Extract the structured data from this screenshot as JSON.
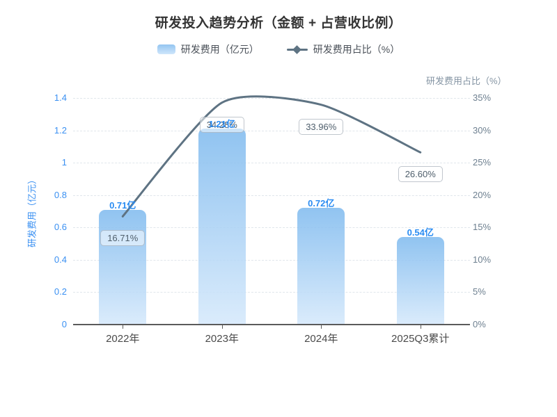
{
  "chart_data": {
    "type": "combo",
    "title": "研发投入趋势分析（金额 + 占营收比例）",
    "categories": [
      "2022年",
      "2023年",
      "2024年",
      "2025Q3累计"
    ],
    "series": [
      {
        "name": "研发费用（亿元）",
        "type": "bar",
        "axis": "left",
        "values": [
          0.71,
          1.21,
          0.72,
          0.54
        ],
        "labels": [
          "0.71亿",
          "1.21亿",
          "0.72亿",
          "0.54亿"
        ]
      },
      {
        "name": "研发费用占比（%）",
        "type": "line",
        "axis": "right",
        "values": [
          16.71,
          34.28,
          33.96,
          26.6
        ],
        "labels": [
          "16.71%",
          "34.28%",
          "33.96%",
          "26.60%"
        ]
      }
    ],
    "left_axis": {
      "title": "研发费用（亿元）",
      "min": 0,
      "max": 1.4,
      "ticks": [
        "0",
        "0.2",
        "0.4",
        "0.6",
        "0.8",
        "1",
        "1.2",
        "1.4"
      ]
    },
    "right_axis": {
      "title": "研发费用占比（%）",
      "min": 0,
      "max": 35,
      "ticks": [
        "0%",
        "5%",
        "10%",
        "15%",
        "20%",
        "25%",
        "30%",
        "35%"
      ]
    },
    "grid": true,
    "legend_position": "top",
    "colors": {
      "bar_top": "#7db9ee",
      "bar_bottom": "#d4e8fb",
      "line": "#5e7383",
      "value_label": "#2a8cf2",
      "left_axis_text": "#3a90f2",
      "right_axis_text": "#6e8090",
      "title_text": "#333333"
    }
  }
}
